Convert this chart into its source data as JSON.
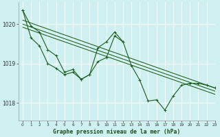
{
  "title": "Graphe pression niveau de la mer (hPa)",
  "bg_color": "#cff0f0",
  "grid_color": "#ffffff",
  "line_color": "#1a5c1a",
  "xlim": [
    -0.5,
    23
  ],
  "ylim": [
    1017.55,
    1020.55
  ],
  "yticks": [
    1018,
    1019,
    1020
  ],
  "xticks": [
    0,
    1,
    2,
    3,
    4,
    5,
    6,
    7,
    8,
    9,
    10,
    11,
    12,
    13,
    14,
    15,
    16,
    17,
    18,
    19,
    20,
    21,
    22,
    23
  ],
  "series1_x": [
    0,
    1,
    2,
    3,
    4,
    5,
    6,
    7,
    8,
    9,
    10,
    11,
    12,
    13,
    14,
    15,
    16,
    17,
    18,
    19,
    20,
    21,
    22,
    23
  ],
  "series1_y": [
    1020.35,
    1019.65,
    1019.45,
    1019.0,
    1018.88,
    1018.72,
    1018.78,
    1018.6,
    1018.72,
    1019.05,
    1019.15,
    1019.7,
    1019.55,
    1018.95,
    1018.58,
    1018.05,
    1018.08,
    1017.82,
    1018.18,
    1018.45,
    1018.5,
    1018.5,
    1018.45,
    1018.38
  ],
  "series2_x": [
    0,
    1,
    2,
    3,
    4,
    5,
    6,
    7,
    8,
    9,
    10,
    11,
    12
  ],
  "series2_y": [
    1020.35,
    1019.95,
    1019.8,
    1019.35,
    1019.2,
    1018.78,
    1018.85,
    1018.6,
    1018.72,
    1019.4,
    1019.55,
    1019.8,
    1019.55
  ],
  "trend_lines": [
    {
      "x": [
        0,
        23
      ],
      "y": [
        1020.1,
        1018.38
      ]
    },
    {
      "x": [
        0,
        23
      ],
      "y": [
        1020.0,
        1018.3
      ]
    },
    {
      "x": [
        0,
        23
      ],
      "y": [
        1019.92,
        1018.22
      ]
    }
  ]
}
